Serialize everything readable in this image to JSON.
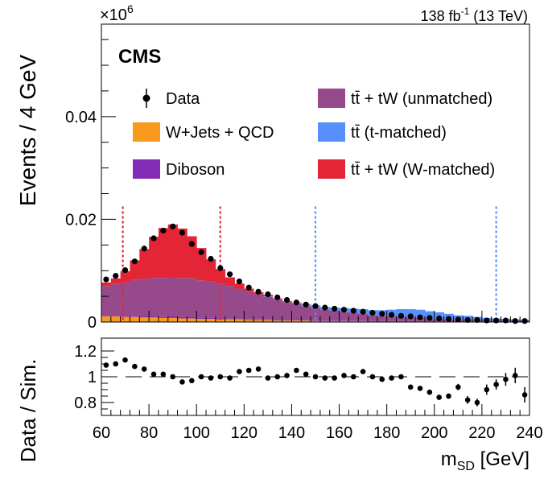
{
  "figure": {
    "exponent_base": "×10",
    "exponent_power": "6",
    "lumi_value": "138 fb",
    "lumi_power": "-1",
    "lumi_energy": " (13 TeV)",
    "cms_label": "CMS",
    "ratio_ylabel": "Data / Sim.",
    "xlabel_main": "m",
    "xlabel_sub": "SD",
    "xlabel_unit": " [GeV]"
  },
  "colors": {
    "wjets_qcd": "#F79A1E",
    "diboson": "#832DB6",
    "ttw_unmatched": "#964A8B",
    "tt_tmatched": "#5790FC",
    "ttw_wmatched": "#E42536",
    "data": "#000000",
    "line_w": "#E42536",
    "line_t": "#5790FC"
  },
  "chart_data": [
    {
      "type": "area",
      "subtype": "stacked-histogram",
      "ylabel": "Events / 4 GeV",
      "xlim": [
        60,
        240
      ],
      "ylim": [
        0,
        0.058
      ],
      "y_scale_factor": "×10^6",
      "y_ticks": [
        "0",
        "0.02",
        "0.04"
      ],
      "y_tick_values": [
        0,
        0.02,
        0.04
      ],
      "legend_placement": "top",
      "bin_edges": [
        60,
        64,
        68,
        72,
        76,
        80,
        84,
        88,
        92,
        96,
        100,
        104,
        108,
        112,
        116,
        120,
        124,
        128,
        132,
        136,
        140,
        144,
        148,
        152,
        156,
        160,
        164,
        168,
        172,
        176,
        180,
        184,
        188,
        192,
        196,
        200,
        204,
        208,
        212,
        216,
        220,
        224,
        228,
        232,
        236,
        240
      ],
      "series": [
        {
          "name": "W+Jets + QCD",
          "color_key": "wjets_qcd",
          "values": [
            0.0011,
            0.0011,
            0.001,
            0.001,
            0.0009,
            0.0009,
            0.0008,
            0.0008,
            0.0007,
            0.0007,
            0.0006,
            0.0006,
            0.0005,
            0.0005,
            0.0005,
            0.0004,
            0.0004,
            0.0004,
            0.0003,
            0.0003,
            0.0003,
            0.0003,
            0.0002,
            0.0002,
            0.0002,
            0.0002,
            0.0002,
            0.0002,
            0.0001,
            0.0001,
            0.0001,
            0.0001,
            0.0001,
            0.0001,
            0.0001,
            0.0001,
            0.0001,
            0.0001,
            0.0001,
            0.0001,
            0.0001,
            0.0001,
            0.0001,
            0.0001,
            0.0001
          ]
        },
        {
          "name": "Diboson",
          "color_key": "diboson",
          "values": [
            0.0001,
            0.0001,
            0.0001,
            0.0002,
            0.0002,
            0.0002,
            0.0002,
            0.0003,
            0.0003,
            0.0003,
            0.0002,
            0.0002,
            0.0002,
            0.0001,
            0.0001,
            0.0001,
            0.0001,
            0.0001,
            0.0001,
            0.0001,
            0.0001,
            0.0001,
            0.0001,
            0.0001,
            0.0001,
            0.0001,
            0.0001,
            0.0001,
            0.0001,
            0.0001,
            0.0001,
            0.0001,
            0.0001,
            0.0001,
            0,
            0,
            0,
            0,
            0,
            0,
            0,
            0,
            0,
            0,
            0
          ]
        },
        {
          "name": "tt̄ + tW (unmatched)",
          "color_key": "ttw_unmatched",
          "values": [
            0.0058,
            0.0062,
            0.0066,
            0.007,
            0.0073,
            0.0075,
            0.0076,
            0.0076,
            0.0076,
            0.0075,
            0.0073,
            0.0071,
            0.0068,
            0.0064,
            0.0059,
            0.0054,
            0.0049,
            0.0044,
            0.0039,
            0.0035,
            0.0031,
            0.0027,
            0.0024,
            0.0021,
            0.0019,
            0.0017,
            0.0015,
            0.0013,
            0.0011,
            0.001,
            0.0009,
            0.0008,
            0.0007,
            0.0006,
            0.0005,
            0.0005,
            0.0004,
            0.0003,
            0.0003,
            0.0003,
            0.0002,
            0.0002,
            0.0002,
            0.0002,
            0.0002
          ]
        },
        {
          "name": "tt̄ (t-matched)",
          "color_key": "tt_tmatched",
          "values": [
            0,
            0,
            0,
            0,
            0,
            0,
            0,
            0,
            0,
            0,
            0,
            0,
            0,
            0,
            0,
            0,
            0,
            0.0001,
            0.0001,
            0.0001,
            0.0002,
            0.0003,
            0.0004,
            0.0005,
            0.0006,
            0.0007,
            0.0008,
            0.0009,
            0.001,
            0.0011,
            0.0013,
            0.0015,
            0.0016,
            0.0016,
            0.0015,
            0.0013,
            0.0011,
            0.0009,
            0.0008,
            0.0006,
            0.0005,
            0.0004,
            0.0003,
            0.0002,
            0.0001
          ]
        },
        {
          "name": "tt̄ + tW (W-matched)",
          "color_key": "ttw_wmatched",
          "values": [
            0.0007,
            0.0011,
            0.0022,
            0.0038,
            0.0058,
            0.008,
            0.0097,
            0.0103,
            0.0096,
            0.0082,
            0.0063,
            0.0043,
            0.0028,
            0.0017,
            0.001,
            0.0006,
            0.0004,
            0.0003,
            0.0002,
            0.0001,
            0.0001,
            0.0001,
            0.0001,
            0,
            0,
            0,
            0,
            0,
            0,
            0,
            0,
            0,
            0,
            0,
            0,
            0,
            0,
            0,
            0,
            0,
            0,
            0,
            0,
            0,
            0
          ]
        }
      ],
      "data_series": {
        "name": "Data",
        "x": [
          62,
          66,
          70,
          74,
          78,
          82,
          86,
          90,
          94,
          98,
          102,
          106,
          110,
          114,
          118,
          122,
          126,
          130,
          134,
          138,
          142,
          146,
          150,
          154,
          158,
          162,
          166,
          170,
          174,
          178,
          182,
          186,
          190,
          194,
          198,
          202,
          206,
          210,
          214,
          218,
          222,
          226,
          230,
          234,
          238
        ],
        "values": [
          0.0083,
          0.009,
          0.0101,
          0.0118,
          0.0143,
          0.0163,
          0.0178,
          0.0186,
          0.0174,
          0.0152,
          0.0136,
          0.0123,
          0.0105,
          0.0093,
          0.0079,
          0.0067,
          0.0059,
          0.0054,
          0.0048,
          0.0043,
          0.0038,
          0.0034,
          0.0031,
          0.0028,
          0.0026,
          0.0024,
          0.0022,
          0.002,
          0.0018,
          0.0016,
          0.0014,
          0.0012,
          0.0011,
          0.0009,
          0.0008,
          0.0007,
          0.0006,
          0.0005,
          0.0004,
          0.0004,
          0.0003,
          0.0003,
          0.0003,
          0.0002,
          0.0002
        ]
      },
      "vertical_lines": [
        {
          "x": 69,
          "color_key": "line_w"
        },
        {
          "x": 110,
          "color_key": "line_w"
        },
        {
          "x": 150,
          "color_key": "line_t"
        },
        {
          "x": 226,
          "color_key": "line_t"
        }
      ],
      "legend": [
        {
          "label": "Data",
          "kind": "marker",
          "color_key": "data",
          "col": 0,
          "row": 0
        },
        {
          "label": "W+Jets + QCD",
          "kind": "box",
          "color_key": "wjets_qcd",
          "col": 0,
          "row": 1
        },
        {
          "label": "Diboson",
          "kind": "box",
          "color_key": "diboson",
          "col": 0,
          "row": 2
        },
        {
          "label": "tt̄ + tW (unmatched)",
          "kind": "box",
          "color_key": "ttw_unmatched",
          "col": 1,
          "row": 0
        },
        {
          "label": "tt̄ (t-matched)",
          "kind": "box",
          "color_key": "tt_tmatched",
          "col": 1,
          "row": 1
        },
        {
          "label": "tt̄ + tW (W-matched)",
          "kind": "box",
          "color_key": "ttw_wmatched",
          "col": 1,
          "row": 2
        }
      ]
    },
    {
      "type": "scatter",
      "subtype": "ratio",
      "ylabel": "Data / Sim.",
      "xlim": [
        60,
        240
      ],
      "ylim": [
        0.7,
        1.3
      ],
      "reference_line": 1,
      "y_ticks": [
        "0.8",
        "1",
        "1.2"
      ],
      "y_tick_values": [
        0.8,
        1.0,
        1.2
      ],
      "x_ticks": [
        "60",
        "80",
        "100",
        "120",
        "140",
        "160",
        "180",
        "200",
        "220",
        "240"
      ],
      "x_tick_values": [
        60,
        80,
        100,
        120,
        140,
        160,
        180,
        200,
        220,
        240
      ],
      "x": [
        62,
        66,
        70,
        74,
        78,
        82,
        86,
        90,
        94,
        98,
        102,
        106,
        110,
        114,
        118,
        122,
        126,
        130,
        134,
        138,
        142,
        146,
        150,
        154,
        158,
        162,
        166,
        170,
        174,
        178,
        182,
        186,
        190,
        194,
        198,
        202,
        206,
        210,
        214,
        218,
        222,
        226,
        230,
        234,
        238
      ],
      "values": [
        1.09,
        1.1,
        1.13,
        1.08,
        1.06,
        1.02,
        1.02,
        1.0,
        0.96,
        0.97,
        1.0,
        0.99,
        1.0,
        0.99,
        1.04,
        1.05,
        1.06,
        0.99,
        1.0,
        1.01,
        1.05,
        1.02,
        1.0,
        0.99,
        0.99,
        1.01,
        1.0,
        1.04,
        1.0,
        0.98,
        0.99,
        1.0,
        0.92,
        0.91,
        0.88,
        0.84,
        0.85,
        0.92,
        0.82,
        0.8,
        0.9,
        0.94,
        0.98,
        1.01,
        0.86
      ],
      "errors": [
        0.01,
        0.01,
        0.01,
        0.01,
        0.01,
        0.01,
        0.01,
        0.01,
        0.01,
        0.01,
        0.01,
        0.01,
        0.01,
        0.01,
        0.01,
        0.01,
        0.01,
        0.01,
        0.01,
        0.01,
        0.01,
        0.01,
        0.01,
        0.01,
        0.01,
        0.01,
        0.01,
        0.01,
        0.01,
        0.01,
        0.01,
        0.01,
        0.01,
        0.015,
        0.015,
        0.02,
        0.02,
        0.025,
        0.03,
        0.03,
        0.04,
        0.04,
        0.05,
        0.06,
        0.06
      ]
    }
  ]
}
